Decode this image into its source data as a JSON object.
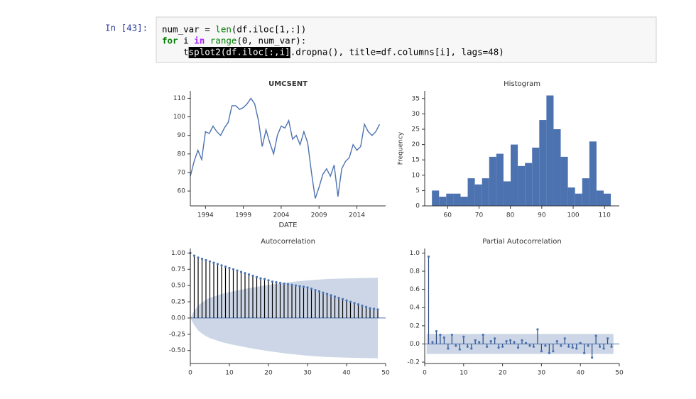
{
  "cell": {
    "prompt": "In [43]:",
    "lines": [
      [
        {
          "text": "num_var = ",
          "style": "plain"
        },
        {
          "text": "len",
          "style": "builtin"
        },
        {
          "text": "(df.iloc[1,:])",
          "style": "plain"
        }
      ],
      [
        {
          "text": "for",
          "style": "keyword"
        },
        {
          "text": " i ",
          "style": "plain"
        },
        {
          "text": "in",
          "style": "operator"
        },
        {
          "text": " ",
          "style": "plain"
        },
        {
          "text": "range",
          "style": "builtin"
        },
        {
          "text": "(0, num_var):",
          "style": "plain"
        }
      ],
      [
        {
          "text": "    t",
          "style": "plain"
        },
        {
          "text": "splot2(df.iloc[:,i]",
          "style": "selected"
        },
        {
          "text": ".dropna(), title=df.columns[i], lags=48)",
          "style": "plain"
        }
      ]
    ]
  },
  "chart_data": [
    {
      "type": "line",
      "title": "UMCSENT",
      "x_label": "DATE",
      "color": "#4c72b0",
      "x": [
        1992,
        1992.5,
        1993,
        1993.5,
        1994,
        1994.5,
        1995,
        1995.5,
        1996,
        1996.5,
        1997,
        1997.5,
        1998,
        1998.5,
        1999,
        1999.5,
        2000,
        2000.5,
        2001,
        2001.5,
        2002,
        2002.5,
        2003,
        2003.5,
        2004,
        2004.5,
        2005,
        2005.5,
        2006,
        2006.5,
        2007,
        2007.5,
        2008,
        2008.5,
        2009,
        2009.5,
        2010,
        2010.5,
        2011,
        2011.5,
        2012,
        2012.5,
        2013,
        2013.5,
        2014,
        2014.5,
        2015,
        2015.5,
        2016,
        2016.5,
        2017
      ],
      "values": [
        68,
        76,
        82,
        77,
        92,
        91,
        95,
        92,
        90,
        94,
        97,
        106,
        106,
        104,
        105,
        107,
        110,
        107,
        98,
        84,
        93,
        86,
        80,
        90,
        95,
        94,
        98,
        88,
        90,
        85,
        92,
        86,
        70,
        56,
        62,
        69,
        72,
        68,
        74,
        57,
        72,
        76,
        78,
        85,
        82,
        84,
        96,
        92,
        90,
        92,
        96
      ],
      "xlim": [
        1992,
        2017.8
      ],
      "xticks": [
        1994,
        1999,
        2004,
        2009,
        2014
      ],
      "ylim": [
        52,
        114
      ],
      "yticks": [
        60,
        70,
        80,
        90,
        100,
        110
      ]
    },
    {
      "type": "histogram",
      "title": "Histogram",
      "y_label": "Frequency",
      "color": "#4c72b0",
      "bins": [
        55,
        57.28,
        59.56,
        61.84,
        64.12,
        66.4,
        68.68,
        70.96,
        73.24,
        75.52,
        77.8,
        80.08,
        82.36,
        84.64,
        86.92,
        89.2,
        91.48,
        93.76,
        96.04,
        98.32,
        100.6,
        102.88,
        105.16,
        107.44,
        109.72,
        112
      ],
      "values": [
        5,
        3,
        4,
        4,
        3,
        9,
        7,
        9,
        16,
        17,
        8,
        20,
        13,
        14,
        19,
        28,
        36,
        25,
        16,
        6,
        4,
        9,
        21,
        5,
        4
      ],
      "xlim": [
        52.7,
        114.7
      ],
      "xticks": [
        60,
        70,
        80,
        90,
        100,
        110
      ],
      "ylim": [
        0,
        37.5
      ],
      "yticks": [
        0,
        5,
        10,
        15,
        20,
        25,
        30,
        35
      ]
    },
    {
      "type": "stem",
      "title": "Autocorrelation",
      "color": "#000000",
      "band_color": "#c3cfe2",
      "x": [
        0,
        1,
        2,
        3,
        4,
        5,
        6,
        7,
        8,
        9,
        10,
        11,
        12,
        13,
        14,
        15,
        16,
        17,
        18,
        19,
        20,
        21,
        22,
        23,
        24,
        25,
        26,
        27,
        28,
        29,
        30,
        31,
        32,
        33,
        34,
        35,
        36,
        37,
        38,
        39,
        40,
        41,
        42,
        43,
        44,
        45,
        46,
        47,
        48
      ],
      "values": [
        1.0,
        0.96,
        0.93,
        0.91,
        0.89,
        0.87,
        0.85,
        0.83,
        0.81,
        0.79,
        0.77,
        0.75,
        0.73,
        0.71,
        0.69,
        0.67,
        0.65,
        0.63,
        0.61,
        0.6,
        0.58,
        0.56,
        0.55,
        0.54,
        0.53,
        0.52,
        0.51,
        0.5,
        0.49,
        0.48,
        0.47,
        0.45,
        0.43,
        0.41,
        0.39,
        0.37,
        0.35,
        0.33,
        0.31,
        0.29,
        0.27,
        0.25,
        0.23,
        0.21,
        0.19,
        0.17,
        0.15,
        0.14,
        0.13
      ],
      "band": {
        "x": [
          0,
          1,
          2,
          3,
          4,
          5,
          6,
          8,
          10,
          15,
          20,
          25,
          30,
          35,
          40,
          48
        ],
        "upper": [
          0,
          0.11,
          0.19,
          0.24,
          0.28,
          0.31,
          0.33,
          0.37,
          0.4,
          0.46,
          0.51,
          0.55,
          0.58,
          0.6,
          0.61,
          0.62
        ],
        "lower": [
          0,
          -0.11,
          -0.19,
          -0.24,
          -0.28,
          -0.31,
          -0.33,
          -0.37,
          -0.4,
          -0.46,
          -0.51,
          -0.55,
          -0.58,
          -0.6,
          -0.61,
          -0.62
        ]
      },
      "xlim": [
        0,
        50
      ],
      "xticks": [
        0,
        10,
        20,
        30,
        40,
        50
      ],
      "ylim": [
        -0.7,
        1.07
      ],
      "yticks": [
        {
          "value": 1,
          "label": "1.00"
        },
        0.75,
        {
          "value": 0.5,
          "label": "0.50"
        },
        0.25,
        {
          "value": 0,
          "label": "0.00"
        },
        -0.25,
        {
          "value": -0.5,
          "label": "-0.50"
        }
      ]
    },
    {
      "type": "stem",
      "title": "Partial Autocorrelation",
      "color": "#2b4a80",
      "band_color": "#c3cfe2",
      "x": [
        1,
        2,
        3,
        4,
        5,
        6,
        7,
        8,
        9,
        10,
        11,
        12,
        13,
        14,
        15,
        16,
        17,
        18,
        19,
        20,
        21,
        22,
        23,
        24,
        25,
        26,
        27,
        28,
        29,
        30,
        31,
        32,
        33,
        34,
        35,
        36,
        37,
        38,
        39,
        40,
        41,
        42,
        43,
        44,
        45,
        46,
        47,
        48
      ],
      "values": [
        0.96,
        0.02,
        0.14,
        0.1,
        0.07,
        -0.05,
        0.1,
        -0.02,
        -0.06,
        0.08,
        -0.03,
        -0.05,
        0.04,
        0.02,
        0.1,
        -0.03,
        0.03,
        0.06,
        -0.04,
        -0.03,
        0.03,
        0.04,
        0.02,
        -0.04,
        0.04,
        0.01,
        -0.02,
        -0.03,
        0.16,
        -0.08,
        -0.02,
        -0.1,
        -0.08,
        0.03,
        -0.02,
        0.06,
        -0.03,
        -0.04,
        -0.05,
        0.01,
        -0.1,
        -0.02,
        -0.15,
        0.09,
        -0.03,
        -0.05,
        0.06,
        -0.03
      ],
      "band": {
        "x": [
          0.5,
          48.5
        ],
        "upper": [
          0.11,
          0.11
        ],
        "lower": [
          -0.11,
          -0.11
        ]
      },
      "xlim": [
        0,
        50
      ],
      "xticks": [
        0,
        10,
        20,
        30,
        40,
        50
      ],
      "ylim": [
        -0.215,
        1.05
      ],
      "yticks": [
        -0.2,
        {
          "value": 0,
          "label": "0.0"
        },
        0.2,
        0.4,
        0.6,
        0.8,
        {
          "value": 1,
          "label": "1.0"
        }
      ]
    }
  ]
}
